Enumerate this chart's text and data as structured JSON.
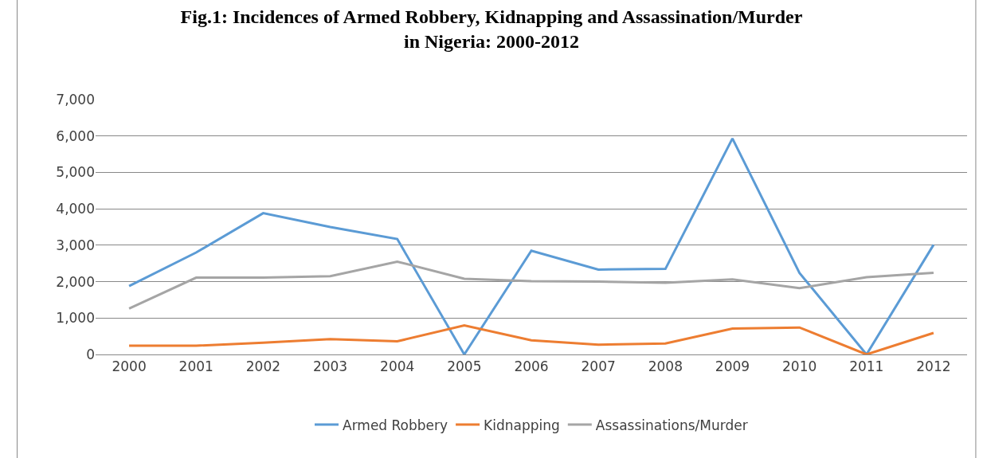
{
  "chart_data": {
    "type": "line",
    "title": "Fig.1: Incidences of Armed Robbery, Kidnapping and Assassination/Murder\nin Nigeria: 2000-2012",
    "categories": [
      "2000",
      "2001",
      "2002",
      "2003",
      "2004",
      "2005",
      "2006",
      "2007",
      "2008",
      "2009",
      "2010",
      "2011",
      "2012"
    ],
    "series": [
      {
        "name": "Armed Robbery",
        "color": "#5b9bd5",
        "values": [
          1880,
          2800,
          3880,
          3500,
          3170,
          0,
          2850,
          2330,
          2350,
          5930,
          2240,
          0,
          3010
        ]
      },
      {
        "name": "Kidnapping",
        "color": "#ed7d31",
        "values": [
          240,
          240,
          320,
          420,
          360,
          800,
          390,
          270,
          300,
          710,
          740,
          0,
          590
        ]
      },
      {
        "name": "Assassinations/Murder",
        "color": "#a5a5a5",
        "values": [
          1260,
          2110,
          2110,
          2150,
          2550,
          2080,
          2010,
          2000,
          1970,
          2060,
          1820,
          2120,
          2240
        ]
      }
    ],
    "ylim": [
      0,
      7000
    ],
    "yticks": [
      {
        "value": 0,
        "label": "0"
      },
      {
        "value": 1000,
        "label": "1,000"
      },
      {
        "value": 2000,
        "label": "2,000"
      },
      {
        "value": 3000,
        "label": "3,000"
      },
      {
        "value": 4000,
        "label": "4,000"
      },
      {
        "value": 5000,
        "label": "5,000"
      },
      {
        "value": 6000,
        "label": "6,000"
      },
      {
        "value": 7000,
        "label": "7,000"
      }
    ],
    "grid": "y",
    "legend": "bottom",
    "marker": "none",
    "line_style": "solid"
  }
}
